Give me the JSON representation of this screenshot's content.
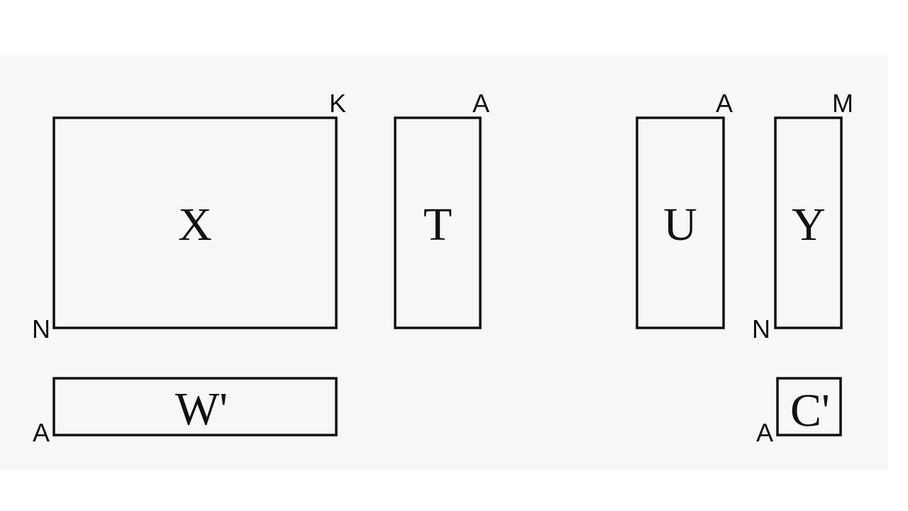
{
  "matrices": {
    "x": {
      "label": "X",
      "top_dim": "K",
      "side_dim": "N"
    },
    "t": {
      "label": "T",
      "top_dim": "A"
    },
    "u": {
      "label": "U",
      "top_dim": "A"
    },
    "y": {
      "label": "Y",
      "top_dim": "M",
      "side_dim": "N"
    },
    "w": {
      "label": "W'",
      "side_dim": "A"
    },
    "c": {
      "label": "C'",
      "side_dim": "A"
    }
  },
  "colors": {
    "stroke": "#111111",
    "canvas": "#f7f7f7",
    "page": "#ffffff"
  }
}
